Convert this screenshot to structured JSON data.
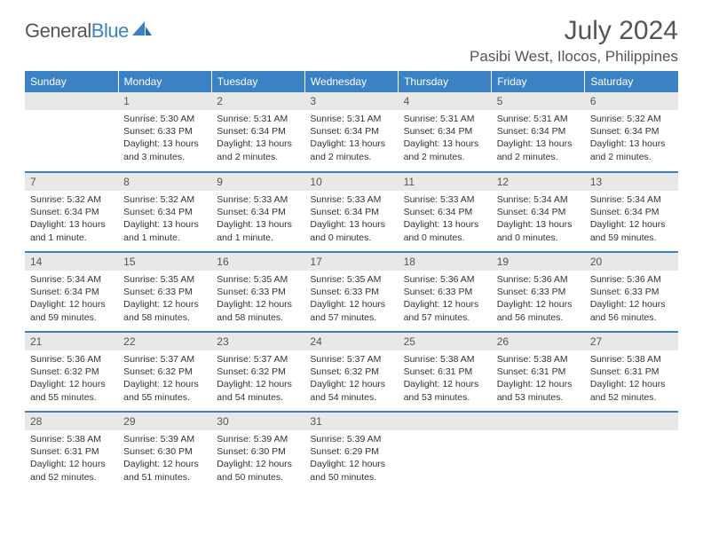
{
  "logo": {
    "word1": "General",
    "word2": "Blue"
  },
  "title": "July 2024",
  "location": "Pasibi West, Ilocos, Philippines",
  "colors": {
    "accent": "#3b82c4",
    "header_bg": "#3b82c4",
    "daynum_bg": "#e8e8e8",
    "text": "#333333",
    "muted": "#555555"
  },
  "weekdays": [
    "Sunday",
    "Monday",
    "Tuesday",
    "Wednesday",
    "Thursday",
    "Friday",
    "Saturday"
  ],
  "weeks": [
    [
      {
        "n": "",
        "sr": "",
        "ss": "",
        "dl": ""
      },
      {
        "n": "1",
        "sr": "Sunrise: 5:30 AM",
        "ss": "Sunset: 6:33 PM",
        "dl": "Daylight: 13 hours and 3 minutes."
      },
      {
        "n": "2",
        "sr": "Sunrise: 5:31 AM",
        "ss": "Sunset: 6:34 PM",
        "dl": "Daylight: 13 hours and 2 minutes."
      },
      {
        "n": "3",
        "sr": "Sunrise: 5:31 AM",
        "ss": "Sunset: 6:34 PM",
        "dl": "Daylight: 13 hours and 2 minutes."
      },
      {
        "n": "4",
        "sr": "Sunrise: 5:31 AM",
        "ss": "Sunset: 6:34 PM",
        "dl": "Daylight: 13 hours and 2 minutes."
      },
      {
        "n": "5",
        "sr": "Sunrise: 5:31 AM",
        "ss": "Sunset: 6:34 PM",
        "dl": "Daylight: 13 hours and 2 minutes."
      },
      {
        "n": "6",
        "sr": "Sunrise: 5:32 AM",
        "ss": "Sunset: 6:34 PM",
        "dl": "Daylight: 13 hours and 2 minutes."
      }
    ],
    [
      {
        "n": "7",
        "sr": "Sunrise: 5:32 AM",
        "ss": "Sunset: 6:34 PM",
        "dl": "Daylight: 13 hours and 1 minute."
      },
      {
        "n": "8",
        "sr": "Sunrise: 5:32 AM",
        "ss": "Sunset: 6:34 PM",
        "dl": "Daylight: 13 hours and 1 minute."
      },
      {
        "n": "9",
        "sr": "Sunrise: 5:33 AM",
        "ss": "Sunset: 6:34 PM",
        "dl": "Daylight: 13 hours and 1 minute."
      },
      {
        "n": "10",
        "sr": "Sunrise: 5:33 AM",
        "ss": "Sunset: 6:34 PM",
        "dl": "Daylight: 13 hours and 0 minutes."
      },
      {
        "n": "11",
        "sr": "Sunrise: 5:33 AM",
        "ss": "Sunset: 6:34 PM",
        "dl": "Daylight: 13 hours and 0 minutes."
      },
      {
        "n": "12",
        "sr": "Sunrise: 5:34 AM",
        "ss": "Sunset: 6:34 PM",
        "dl": "Daylight: 13 hours and 0 minutes."
      },
      {
        "n": "13",
        "sr": "Sunrise: 5:34 AM",
        "ss": "Sunset: 6:34 PM",
        "dl": "Daylight: 12 hours and 59 minutes."
      }
    ],
    [
      {
        "n": "14",
        "sr": "Sunrise: 5:34 AM",
        "ss": "Sunset: 6:34 PM",
        "dl": "Daylight: 12 hours and 59 minutes."
      },
      {
        "n": "15",
        "sr": "Sunrise: 5:35 AM",
        "ss": "Sunset: 6:33 PM",
        "dl": "Daylight: 12 hours and 58 minutes."
      },
      {
        "n": "16",
        "sr": "Sunrise: 5:35 AM",
        "ss": "Sunset: 6:33 PM",
        "dl": "Daylight: 12 hours and 58 minutes."
      },
      {
        "n": "17",
        "sr": "Sunrise: 5:35 AM",
        "ss": "Sunset: 6:33 PM",
        "dl": "Daylight: 12 hours and 57 minutes."
      },
      {
        "n": "18",
        "sr": "Sunrise: 5:36 AM",
        "ss": "Sunset: 6:33 PM",
        "dl": "Daylight: 12 hours and 57 minutes."
      },
      {
        "n": "19",
        "sr": "Sunrise: 5:36 AM",
        "ss": "Sunset: 6:33 PM",
        "dl": "Daylight: 12 hours and 56 minutes."
      },
      {
        "n": "20",
        "sr": "Sunrise: 5:36 AM",
        "ss": "Sunset: 6:33 PM",
        "dl": "Daylight: 12 hours and 56 minutes."
      }
    ],
    [
      {
        "n": "21",
        "sr": "Sunrise: 5:36 AM",
        "ss": "Sunset: 6:32 PM",
        "dl": "Daylight: 12 hours and 55 minutes."
      },
      {
        "n": "22",
        "sr": "Sunrise: 5:37 AM",
        "ss": "Sunset: 6:32 PM",
        "dl": "Daylight: 12 hours and 55 minutes."
      },
      {
        "n": "23",
        "sr": "Sunrise: 5:37 AM",
        "ss": "Sunset: 6:32 PM",
        "dl": "Daylight: 12 hours and 54 minutes."
      },
      {
        "n": "24",
        "sr": "Sunrise: 5:37 AM",
        "ss": "Sunset: 6:32 PM",
        "dl": "Daylight: 12 hours and 54 minutes."
      },
      {
        "n": "25",
        "sr": "Sunrise: 5:38 AM",
        "ss": "Sunset: 6:31 PM",
        "dl": "Daylight: 12 hours and 53 minutes."
      },
      {
        "n": "26",
        "sr": "Sunrise: 5:38 AM",
        "ss": "Sunset: 6:31 PM",
        "dl": "Daylight: 12 hours and 53 minutes."
      },
      {
        "n": "27",
        "sr": "Sunrise: 5:38 AM",
        "ss": "Sunset: 6:31 PM",
        "dl": "Daylight: 12 hours and 52 minutes."
      }
    ],
    [
      {
        "n": "28",
        "sr": "Sunrise: 5:38 AM",
        "ss": "Sunset: 6:31 PM",
        "dl": "Daylight: 12 hours and 52 minutes."
      },
      {
        "n": "29",
        "sr": "Sunrise: 5:39 AM",
        "ss": "Sunset: 6:30 PM",
        "dl": "Daylight: 12 hours and 51 minutes."
      },
      {
        "n": "30",
        "sr": "Sunrise: 5:39 AM",
        "ss": "Sunset: 6:30 PM",
        "dl": "Daylight: 12 hours and 50 minutes."
      },
      {
        "n": "31",
        "sr": "Sunrise: 5:39 AM",
        "ss": "Sunset: 6:29 PM",
        "dl": "Daylight: 12 hours and 50 minutes."
      },
      {
        "n": "",
        "sr": "",
        "ss": "",
        "dl": ""
      },
      {
        "n": "",
        "sr": "",
        "ss": "",
        "dl": ""
      },
      {
        "n": "",
        "sr": "",
        "ss": "",
        "dl": ""
      }
    ]
  ]
}
